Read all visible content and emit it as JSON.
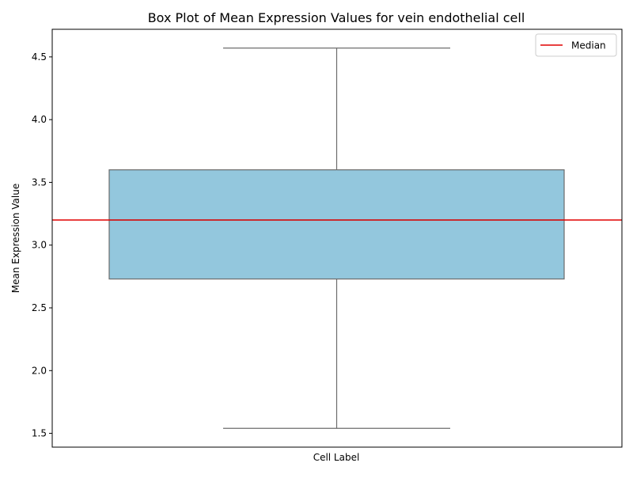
{
  "chart_data": {
    "type": "box",
    "title": "Box Plot of Mean Expression Values for vein endothelial cell",
    "xlabel": "Cell Label",
    "ylabel": "Mean Expression Value",
    "categories": [
      ""
    ],
    "box": {
      "min": 1.54,
      "q1": 2.73,
      "median": 3.2,
      "q3": 3.6,
      "max": 4.57
    },
    "median_line": {
      "value": 3.2,
      "label": "Median",
      "color": "#e00000"
    },
    "ylim": [
      1.39,
      4.72
    ],
    "yticks": [
      1.5,
      2.0,
      2.5,
      3.0,
      3.5,
      4.0,
      4.5
    ],
    "ytick_labels": [
      "1.5",
      "2.0",
      "2.5",
      "3.0",
      "3.5",
      "4.0",
      "4.5"
    ],
    "legend": {
      "position": "top-right",
      "entries": [
        "Median"
      ]
    },
    "grid": false,
    "colors": {
      "box_fill": "#93c7dd",
      "box_edge": "#6b6b6b",
      "median_line": "#e00000"
    }
  }
}
